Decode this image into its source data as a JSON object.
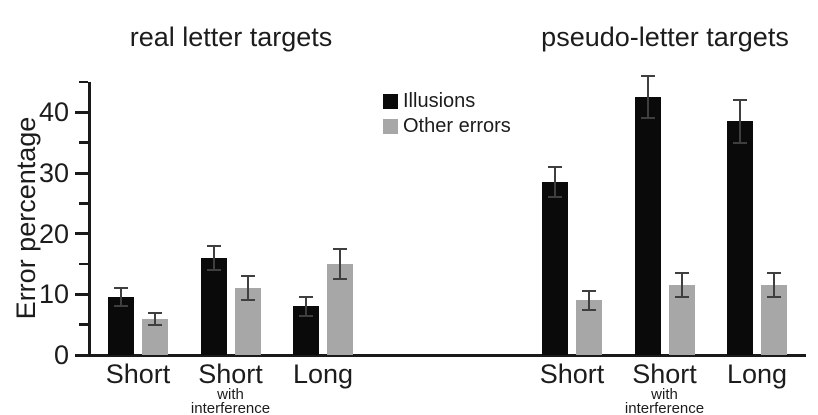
{
  "chart_data": {
    "type": "bar",
    "title": "",
    "y_axis": {
      "label": "Error percentage",
      "ylim": [
        0,
        45
      ],
      "major_ticks": [
        0,
        10,
        20,
        30,
        40
      ],
      "minor_ticks": [
        5,
        15,
        25,
        35,
        45
      ],
      "grid": false
    },
    "legend": {
      "position": "top-center",
      "items": [
        {
          "label": "Illusions",
          "color": "#0a0a0a"
        },
        {
          "label": "Other errors",
          "color": "#a7a7a7"
        }
      ]
    },
    "error_bar_color": "#3f3f3f",
    "groups": [
      {
        "title": "real letter targets",
        "categories": [
          {
            "label": "Short",
            "sublines": []
          },
          {
            "label": "Short",
            "sublines": [
              "with",
              "interference"
            ]
          },
          {
            "label": "Long",
            "sublines": []
          }
        ],
        "series": [
          {
            "name": "Illusions",
            "color": "#0a0a0a",
            "values": [
              9.5,
              16,
              8
            ],
            "errors": [
              1.5,
              2,
              1.5
            ]
          },
          {
            "name": "Other errors",
            "color": "#a7a7a7",
            "values": [
              6,
              11,
              15
            ],
            "errors": [
              1,
              2,
              2.5
            ]
          }
        ]
      },
      {
        "title": "pseudo-letter targets",
        "categories": [
          {
            "label": "Short",
            "sublines": []
          },
          {
            "label": "Short",
            "sublines": [
              "with",
              "interference"
            ]
          },
          {
            "label": "Long",
            "sublines": []
          }
        ],
        "series": [
          {
            "name": "Illusions",
            "color": "#0a0a0a",
            "values": [
              28.5,
              42.5,
              38.5
            ],
            "errors": [
              2.5,
              3.5,
              3.5
            ]
          },
          {
            "name": "Other errors",
            "color": "#a7a7a7",
            "values": [
              9,
              11.5,
              11.5
            ],
            "errors": [
              1.5,
              2,
              2
            ]
          }
        ]
      }
    ]
  }
}
